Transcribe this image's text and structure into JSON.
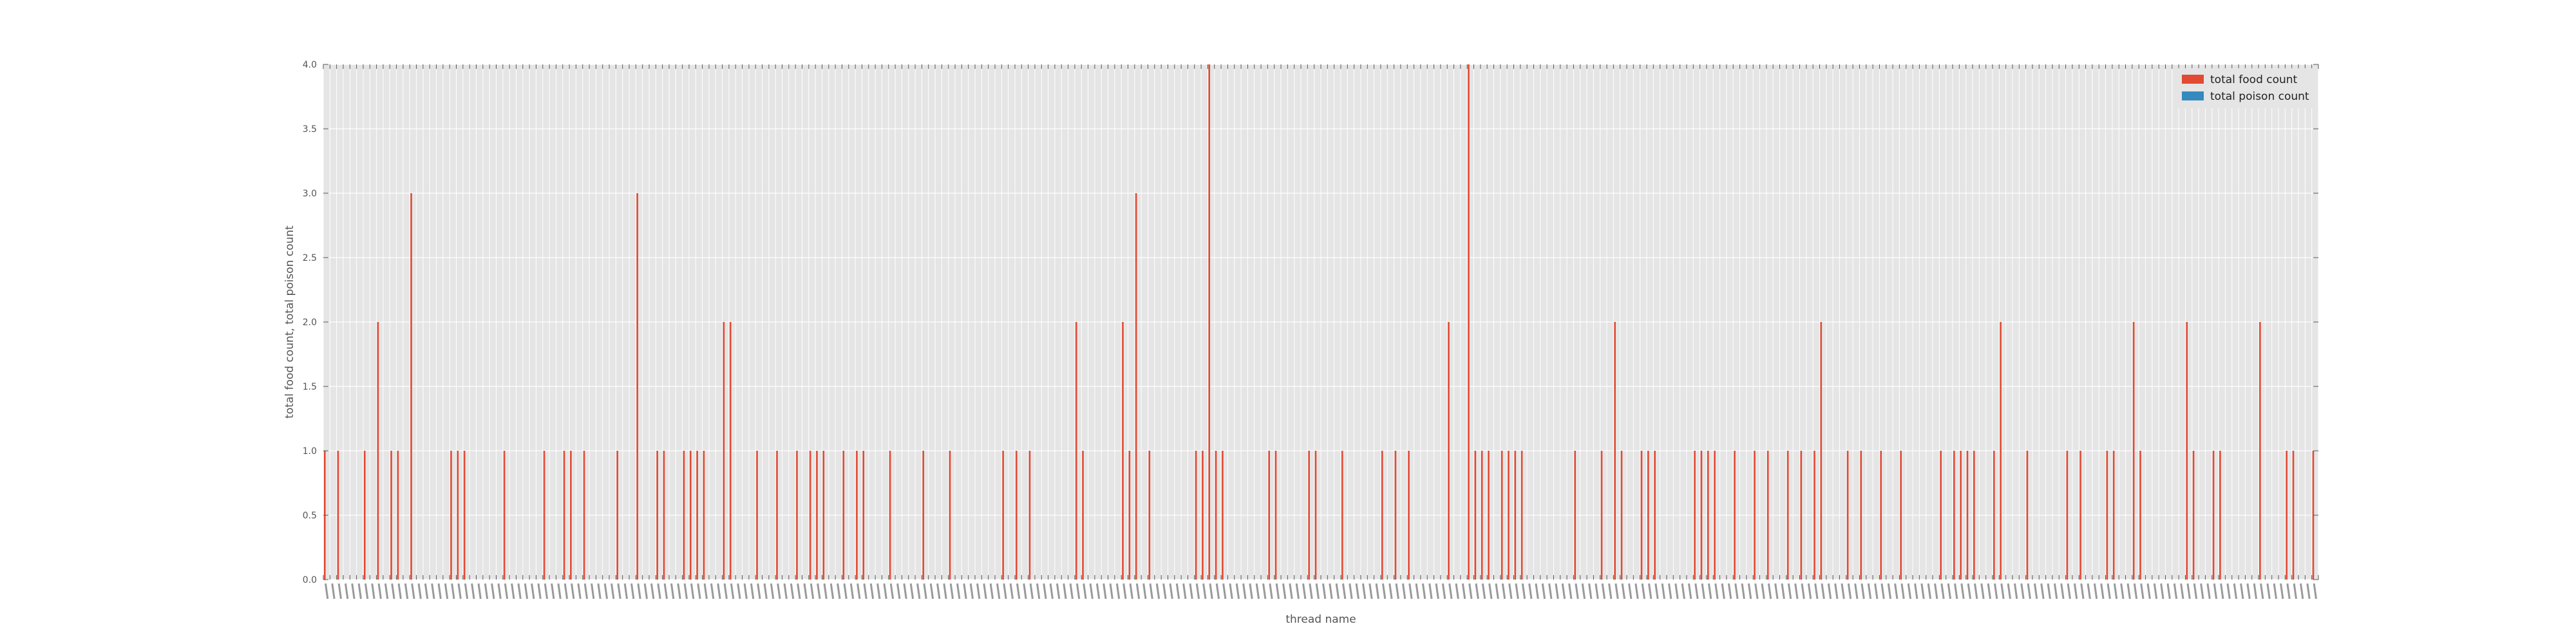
{
  "chart_data": {
    "type": "bar",
    "title": "",
    "xlabel": "thread name",
    "ylabel": "total food count, total poison count",
    "ylim": [
      0,
      4
    ],
    "yticks": [
      "0.0",
      "0.5",
      "1.0",
      "1.5",
      "2.0",
      "2.5",
      "3.0",
      "3.5",
      "4.0"
    ],
    "grid": true,
    "legend": {
      "placement": "top-right"
    },
    "x_count": 300,
    "x_tick_labels_legible": false,
    "series": [
      {
        "name": "total food count",
        "color": "#e24a33",
        "points": [
          [
            0,
            1
          ],
          [
            2,
            1
          ],
          [
            6,
            1
          ],
          [
            8,
            2
          ],
          [
            10,
            1
          ],
          [
            11,
            1
          ],
          [
            13,
            3
          ],
          [
            19,
            1
          ],
          [
            20,
            1
          ],
          [
            21,
            1
          ],
          [
            27,
            1
          ],
          [
            33,
            1
          ],
          [
            36,
            1
          ],
          [
            37,
            1
          ],
          [
            39,
            1
          ],
          [
            44,
            1
          ],
          [
            47,
            3
          ],
          [
            50,
            1
          ],
          [
            51,
            1
          ],
          [
            54,
            1
          ],
          [
            55,
            1
          ],
          [
            56,
            1
          ],
          [
            57,
            1
          ],
          [
            60,
            2
          ],
          [
            61,
            2
          ],
          [
            65,
            1
          ],
          [
            68,
            1
          ],
          [
            71,
            1
          ],
          [
            73,
            1
          ],
          [
            74,
            1
          ],
          [
            75,
            1
          ],
          [
            78,
            1
          ],
          [
            80,
            1
          ],
          [
            81,
            1
          ],
          [
            85,
            1
          ],
          [
            90,
            1
          ],
          [
            94,
            1
          ],
          [
            102,
            1
          ],
          [
            104,
            1
          ],
          [
            106,
            1
          ],
          [
            113,
            2
          ],
          [
            114,
            1
          ],
          [
            120,
            2
          ],
          [
            121,
            1
          ],
          [
            122,
            3
          ],
          [
            124,
            1
          ],
          [
            131,
            1
          ],
          [
            132,
            1
          ],
          [
            133,
            4
          ],
          [
            134,
            1
          ],
          [
            135,
            1
          ],
          [
            142,
            1
          ],
          [
            143,
            1
          ],
          [
            148,
            1
          ],
          [
            149,
            1
          ],
          [
            153,
            1
          ],
          [
            159,
            1
          ],
          [
            161,
            1
          ],
          [
            163,
            1
          ],
          [
            169,
            2
          ],
          [
            172,
            4
          ],
          [
            173,
            1
          ],
          [
            174,
            1
          ],
          [
            175,
            1
          ],
          [
            177,
            1
          ],
          [
            178,
            1
          ],
          [
            179,
            1
          ],
          [
            180,
            1
          ],
          [
            188,
            1
          ],
          [
            192,
            1
          ],
          [
            194,
            2
          ],
          [
            195,
            1
          ],
          [
            198,
            1
          ],
          [
            199,
            1
          ],
          [
            200,
            1
          ],
          [
            206,
            1
          ],
          [
            207,
            1
          ],
          [
            208,
            1
          ],
          [
            209,
            1
          ],
          [
            212,
            1
          ],
          [
            215,
            1
          ],
          [
            217,
            1
          ],
          [
            220,
            1
          ],
          [
            222,
            1
          ],
          [
            224,
            1
          ],
          [
            225,
            2
          ],
          [
            229,
            1
          ],
          [
            231,
            1
          ],
          [
            234,
            1
          ],
          [
            237,
            1
          ],
          [
            243,
            1
          ],
          [
            245,
            1
          ],
          [
            246,
            1
          ],
          [
            247,
            1
          ],
          [
            248,
            1
          ],
          [
            251,
            1
          ],
          [
            252,
            2
          ],
          [
            256,
            1
          ],
          [
            262,
            1
          ],
          [
            264,
            1
          ],
          [
            268,
            1
          ],
          [
            269,
            1
          ],
          [
            272,
            2
          ],
          [
            273,
            1
          ],
          [
            280,
            2
          ],
          [
            281,
            1
          ],
          [
            284,
            1
          ],
          [
            285,
            1
          ],
          [
            291,
            2
          ],
          [
            295,
            1
          ],
          [
            296,
            1
          ],
          [
            299,
            1
          ]
        ]
      },
      {
        "name": "total poison count",
        "color": "#348abd",
        "points": []
      }
    ]
  }
}
